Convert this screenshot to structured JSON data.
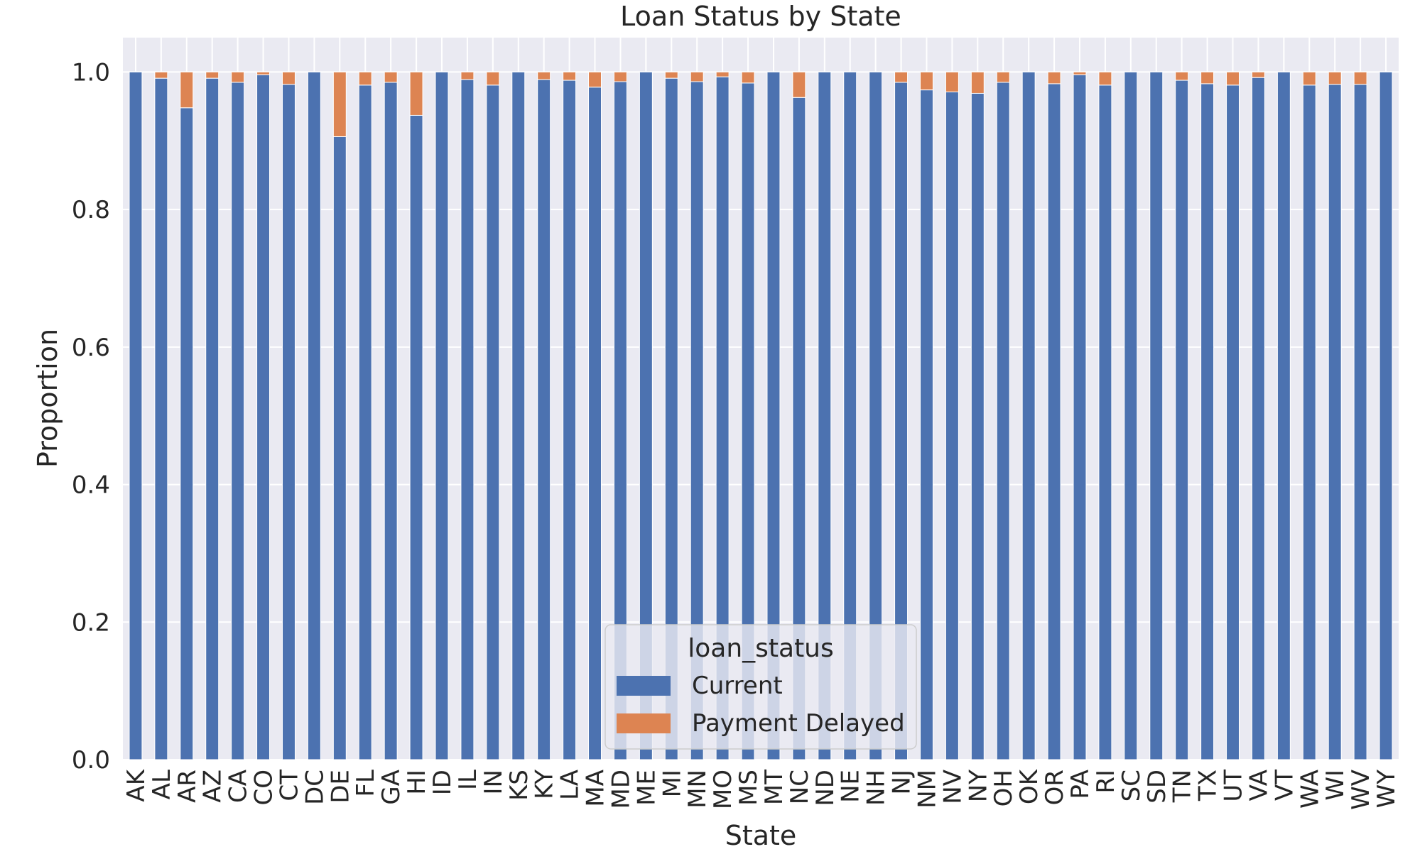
{
  "chart_data": {
    "type": "bar",
    "stacked": true,
    "title": "Loan Status by State",
    "xlabel": "State",
    "ylabel": "Proportion",
    "ylim": [
      0,
      1.05
    ],
    "yticks": [
      "0.0",
      "0.2",
      "0.4",
      "0.6",
      "0.8",
      "1.0"
    ],
    "grid": true,
    "legend": {
      "title": "loan_status",
      "placement": "lower-center"
    },
    "categories": [
      "AK",
      "AL",
      "AR",
      "AZ",
      "CA",
      "CO",
      "CT",
      "DC",
      "DE",
      "FL",
      "GA",
      "HI",
      "ID",
      "IL",
      "IN",
      "KS",
      "KY",
      "LA",
      "MA",
      "MD",
      "ME",
      "MI",
      "MN",
      "MO",
      "MS",
      "MT",
      "NC",
      "ND",
      "NE",
      "NH",
      "NJ",
      "NM",
      "NV",
      "NY",
      "OH",
      "OK",
      "OR",
      "PA",
      "RI",
      "SC",
      "SD",
      "TN",
      "TX",
      "UT",
      "VA",
      "VT",
      "WA",
      "WI",
      "WV",
      "WY"
    ],
    "series": [
      {
        "name": "Current",
        "color": "#4c72b0",
        "values": [
          1.0,
          0.991,
          0.948,
          0.991,
          0.985,
          0.996,
          0.982,
          1.0,
          0.906,
          0.981,
          0.985,
          0.937,
          1.0,
          0.989,
          0.981,
          1.0,
          0.989,
          0.988,
          0.978,
          0.986,
          1.0,
          0.991,
          0.986,
          0.993,
          0.984,
          1.0,
          0.963,
          1.0,
          1.0,
          1.0,
          0.985,
          0.974,
          0.971,
          0.969,
          0.985,
          1.0,
          0.983,
          0.996,
          0.981,
          1.0,
          1.0,
          0.988,
          0.983,
          0.981,
          0.992,
          1.0,
          0.981,
          0.982,
          0.982,
          1.0
        ]
      },
      {
        "name": "Payment Delayed",
        "color": "#dd8452",
        "values": [
          0.0,
          0.009,
          0.052,
          0.009,
          0.015,
          0.004,
          0.018,
          0.0,
          0.094,
          0.019,
          0.015,
          0.063,
          0.0,
          0.011,
          0.019,
          0.0,
          0.011,
          0.012,
          0.022,
          0.014,
          0.0,
          0.009,
          0.014,
          0.007,
          0.016,
          0.0,
          0.037,
          0.0,
          0.0,
          0.0,
          0.015,
          0.026,
          0.029,
          0.031,
          0.015,
          0.0,
          0.017,
          0.004,
          0.019,
          0.0,
          0.0,
          0.012,
          0.017,
          0.019,
          0.008,
          0.0,
          0.019,
          0.018,
          0.018,
          0.0
        ]
      }
    ]
  }
}
